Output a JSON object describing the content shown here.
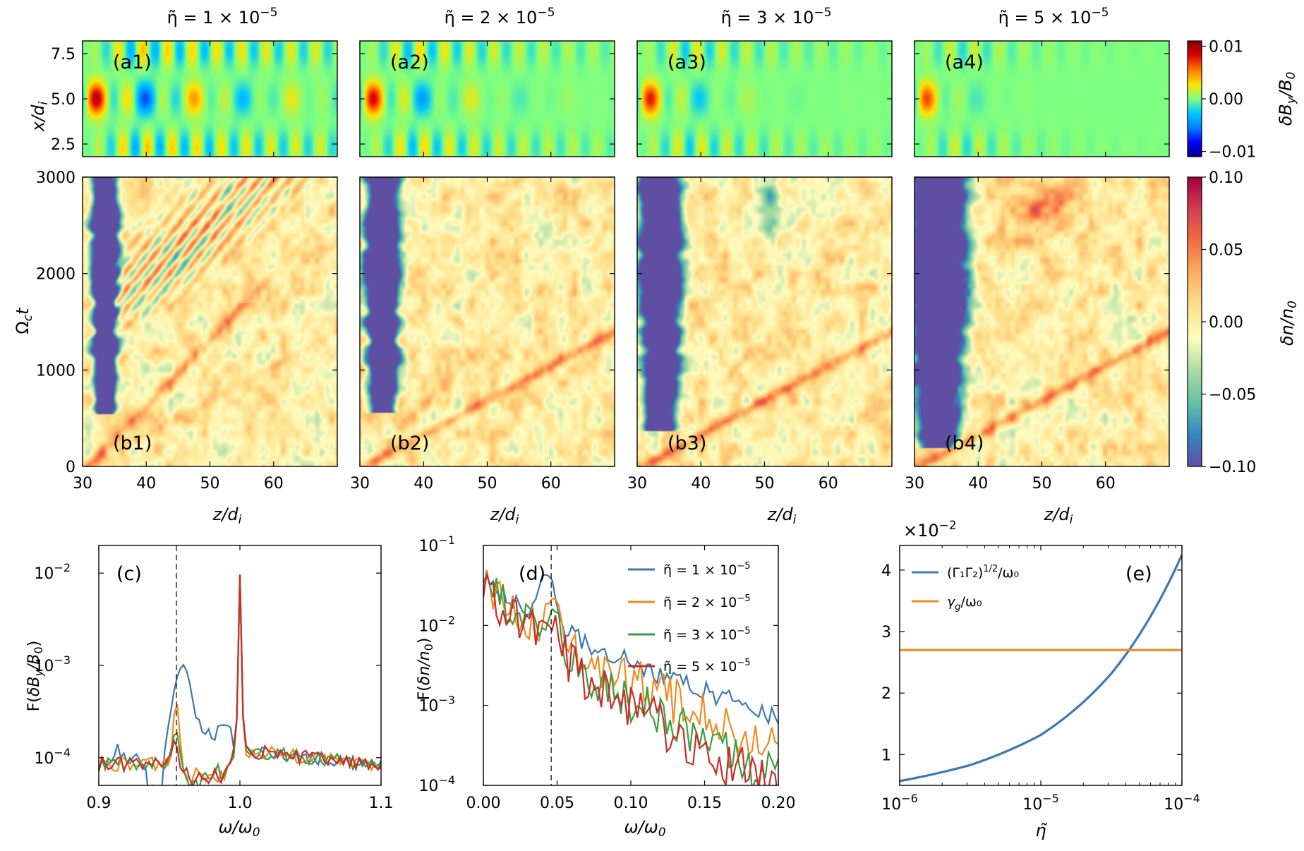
{
  "top_titles": [
    {
      "base": "η̃ = 1 × 10",
      "exp": "−5"
    },
    {
      "base": "η̃ = 2 × 10",
      "exp": "−5"
    },
    {
      "base": "η̃ = 3 × 10",
      "exp": "−5"
    },
    {
      "base": "η̃ = 5 × 10",
      "exp": "−5"
    }
  ],
  "colors": {
    "blue": "#3a78b4",
    "orange": "#f28a1e",
    "green": "#3a9e3a",
    "red": "#cc2b2b",
    "map_by": [
      "#00008f",
      "#0000ff",
      "#0080ff",
      "#00c8ff",
      "#7fff80",
      "#ffe400",
      "#ff7800",
      "#e00000",
      "#800000"
    ],
    "map_dn": [
      "#5e4fa2",
      "#3288bd",
      "#66c2a5",
      "#abdda4",
      "#fffcc0",
      "#fee08b",
      "#fdae61",
      "#f46d43",
      "#d53e4f",
      "#9e0142"
    ]
  },
  "chart_data": [
    {
      "id": "a-row",
      "type": "heatmap",
      "panels": [
        "(a1)",
        "(a2)",
        "(a3)",
        "(a4)"
      ],
      "ylabel": "x/d_i",
      "yticks": [
        "7.5",
        "5.0",
        "2.5"
      ],
      "ytick_values": [
        7.5,
        5.0,
        2.5
      ],
      "ylim": [
        1.8,
        8.2
      ],
      "xlim": [
        30,
        70
      ],
      "colorbar": {
        "label": "δB_y/B_0",
        "ticks": [
          "0.01",
          "0.00",
          "−0.01"
        ],
        "tick_values": [
          0.01,
          0.0,
          -0.01
        ],
        "range": [
          -0.011,
          0.011
        ]
      }
    },
    {
      "id": "b-row",
      "type": "heatmap",
      "panels": [
        "(b1)",
        "(b2)",
        "(b3)",
        "(b4)"
      ],
      "ylabel": "Ω_c t",
      "yticks": [
        "3000",
        "2000",
        "1000",
        "0"
      ],
      "ytick_values": [
        3000,
        2000,
        1000,
        0
      ],
      "ylim": [
        0,
        3000
      ],
      "xlabel": "z/d_i",
      "xticks": [
        "30",
        "40",
        "50",
        "60"
      ],
      "xtick_values": [
        30,
        40,
        50,
        60
      ],
      "xlim": [
        30,
        70
      ],
      "colorbar": {
        "label": "δn/n_0",
        "ticks": [
          "0.10",
          "0.05",
          "0.00",
          "−0.05",
          "−0.10"
        ],
        "tick_values": [
          0.1,
          0.05,
          0.0,
          -0.05,
          -0.1
        ],
        "range": [
          -0.1,
          0.1
        ]
      }
    },
    {
      "id": "c",
      "type": "line",
      "panel": "(c)",
      "xlabel": "ω/ω_0",
      "ylabel": "F(δB_y/B_0)",
      "xlim": [
        0.9,
        1.1
      ],
      "ylim_log": [
        -4.3,
        -1.7
      ],
      "xticks": [
        "0.9",
        "1.0",
        "1.1"
      ],
      "xtick_values": [
        0.9,
        1.0,
        1.1
      ],
      "yticks": [
        "10",
        "10",
        "10"
      ],
      "ytick_exps": [
        "−2",
        "−3",
        "−4"
      ],
      "ytick_values": [
        -2,
        -3,
        -4
      ],
      "vline_x": 0.955,
      "series": [
        {
          "name": "η̃ = 1 × 10^-5",
          "color": "blue",
          "peak_center": 0.959,
          "peak_height": 0.00085,
          "peak_width": 0.007
        },
        {
          "name": "η̃ = 2 × 10^-5",
          "color": "orange",
          "peak_center": 0.955,
          "peak_height": 0.00033,
          "peak_width": 0.0025
        },
        {
          "name": "η̃ = 3 × 10^-5",
          "color": "green",
          "peak_center": 0.955,
          "peak_height": 0.00012,
          "peak_width": 0.003
        },
        {
          "name": "η̃ = 5 × 10^-5",
          "color": "red",
          "peak_center": 0.955,
          "peak_height": 8e-05,
          "peak_width": 0.003
        }
      ],
      "main_peak": {
        "x": 1.0,
        "y": 0.0095
      }
    },
    {
      "id": "d",
      "type": "line",
      "panel": "(d)",
      "xlabel": "ω/ω_0",
      "ylabel": "F(δn/n_0)",
      "xlim": [
        0.0,
        0.2
      ],
      "ylim_log": [
        -4,
        -1
      ],
      "xticks": [
        "0.00",
        "0.05",
        "0.10",
        "0.15",
        "0.20"
      ],
      "xtick_values": [
        0.0,
        0.05,
        0.1,
        0.15,
        0.2
      ],
      "yticks": [
        "10",
        "10",
        "10",
        "10"
      ],
      "ytick_exps": [
        "−1",
        "−2",
        "−3",
        "−4"
      ],
      "ytick_values": [
        -1,
        -2,
        -3,
        -4
      ],
      "vline_x": 0.046,
      "series": [
        {
          "name": "η̃ = 1 × 10",
          "exp": "−5",
          "color": "blue",
          "end_value": 0.0007,
          "bump": 0.035,
          "bump_x": 0.043
        },
        {
          "name": "η̃ = 2 × 10",
          "exp": "−5",
          "color": "orange",
          "end_value": 0.0003,
          "bump": 0.016,
          "bump_x": 0.047
        },
        {
          "name": "η̃ = 3 × 10",
          "exp": "−5",
          "color": "green",
          "end_value": 0.00012,
          "bump": 0.009,
          "bump_x": 0.047
        },
        {
          "name": "η̃ = 5 × 10",
          "exp": "−5",
          "color": "red",
          "end_value": 9e-05,
          "bump": 0.006,
          "bump_x": 0.047
        }
      ]
    },
    {
      "id": "e",
      "type": "line",
      "panel": "(e)",
      "xlabel": "η̃",
      "multiplier_base": "×10",
      "multiplier_exp": "−2",
      "xlim_log": [
        -6,
        -4
      ],
      "ylim": [
        0.5,
        4.4
      ],
      "xticks": [
        "10",
        "10",
        "10"
      ],
      "xtick_exps": [
        "−6",
        "−5",
        "−4"
      ],
      "xtick_values": [
        -6,
        -5,
        -4
      ],
      "yticks": [
        "1",
        "2",
        "3",
        "4"
      ],
      "ytick_values": [
        1,
        2,
        3,
        4
      ],
      "series": [
        {
          "name": "(Γ1Γ2)^1/2/ω0",
          "label_main": "(Γ₁Γ₂)",
          "label_sup": "1/2",
          "label_tail": "/ω₀",
          "color": "blue",
          "x_log": [
            -6,
            -5.5,
            -5,
            -4.5,
            -4
          ],
          "y": [
            0.57,
            0.83,
            1.32,
            2.32,
            4.25
          ]
        },
        {
          "name": "γg/ω0",
          "label_main": "γ",
          "label_sub": "g",
          "label_tail": "/ω₀",
          "color": "orange",
          "x_log": [
            -6,
            -4
          ],
          "y": [
            2.7,
            2.7
          ]
        }
      ]
    }
  ]
}
